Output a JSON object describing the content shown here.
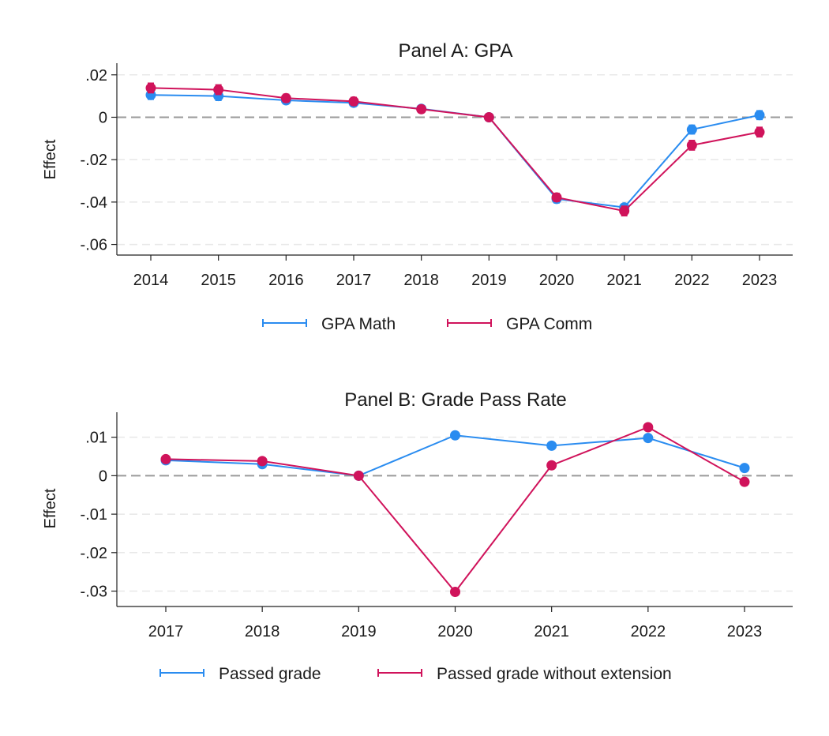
{
  "chart_data": [
    {
      "type": "line",
      "title": "Panel A: GPA",
      "xlabel": "",
      "ylabel": "Effect",
      "x": [
        "2014",
        "2015",
        "2016",
        "2017",
        "2018",
        "2019",
        "2020",
        "2021",
        "2022",
        "2023"
      ],
      "ylim": [
        -0.065,
        0.0255
      ],
      "yticks": [
        0.02,
        0,
        -0.02,
        -0.04,
        -0.06
      ],
      "ytick_labels": [
        ".02",
        "0",
        "-.02",
        "-.04",
        "-.06"
      ],
      "reference_line": 0,
      "grid": true,
      "legend_position": "bottom",
      "series": [
        {
          "name": "GPA Math",
          "color": "#2a8cf0",
          "values": [
            0.0105,
            0.01,
            0.008,
            0.0068,
            0.004,
            0.0,
            -0.0385,
            -0.0425,
            -0.0058,
            0.001
          ],
          "errors": [
            0.002,
            0.002,
            0.0015,
            0.0015,
            0.0012,
            0.0,
            0.0018,
            0.0015,
            0.002,
            0.002
          ]
        },
        {
          "name": "GPA Comm",
          "color": "#d0135b",
          "values": [
            0.0138,
            0.013,
            0.009,
            0.0075,
            0.0038,
            0.0,
            -0.0378,
            -0.0442,
            -0.0132,
            -0.007
          ],
          "errors": [
            0.0022,
            0.0022,
            0.0018,
            0.0018,
            0.0015,
            0.0,
            0.0018,
            0.0022,
            0.0022,
            0.0022
          ]
        }
      ]
    },
    {
      "type": "line",
      "title": "Panel B: Grade Pass Rate",
      "xlabel": "",
      "ylabel": "Effect",
      "x": [
        "2017",
        "2018",
        "2019",
        "2020",
        "2021",
        "2022",
        "2023"
      ],
      "ylim": [
        -0.034,
        0.0165
      ],
      "yticks": [
        0.01,
        0,
        -0.01,
        -0.02,
        -0.03
      ],
      "ytick_labels": [
        ".01",
        "0",
        "-.01",
        "-.02",
        "-.03"
      ],
      "reference_line": 0,
      "grid": true,
      "legend_position": "bottom",
      "series": [
        {
          "name": "Passed grade",
          "color": "#2a8cf0",
          "values": [
            0.004,
            0.003,
            0.0,
            0.0105,
            0.0078,
            0.0098,
            0.002
          ],
          "errors": [
            0.0003,
            0.0003,
            0.0,
            0.0003,
            0.0003,
            0.0003,
            0.0003
          ]
        },
        {
          "name": "Passed grade without extension",
          "color": "#d0135b",
          "values": [
            0.0043,
            0.0038,
            0.0,
            -0.0302,
            0.0027,
            0.0126,
            -0.0016
          ],
          "errors": [
            0.0003,
            0.0003,
            0.0,
            0.0004,
            0.0003,
            0.0003,
            0.0003
          ]
        }
      ]
    }
  ]
}
